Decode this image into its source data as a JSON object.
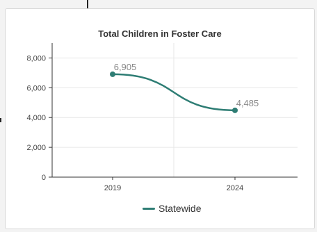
{
  "colors": {
    "series": "#2e7d74",
    "grid": "#e6e6e6",
    "axis": "#333333",
    "card_border": "#d8d8d8"
  },
  "chart_data": {
    "type": "line",
    "title": "Total Children in Foster Care",
    "x": [
      "2019",
      "2024"
    ],
    "series": [
      {
        "name": "Statewide",
        "values": [
          6905,
          4485
        ],
        "data_labels": [
          "6,905",
          "4,485"
        ]
      }
    ],
    "ylim": [
      0,
      9000
    ],
    "yticks": [
      0,
      2000,
      4000,
      6000,
      8000
    ],
    "ytick_labels": [
      "0",
      "2,000",
      "4,000",
      "6,000",
      "8,000"
    ],
    "grid": true,
    "smooth": true,
    "legend": {
      "position": "bottom",
      "entries": [
        "Statewide"
      ]
    }
  }
}
